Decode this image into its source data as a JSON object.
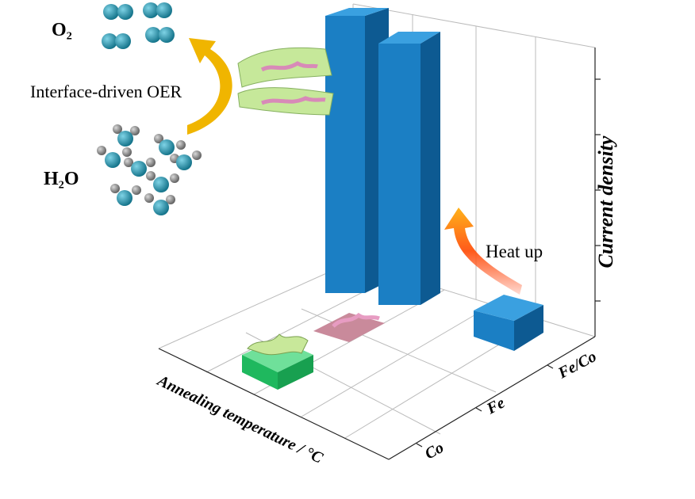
{
  "labels": {
    "o2": "O₂",
    "oer": "Interface-driven OER",
    "h2o": "H₂O",
    "heat_up": "Heat up"
  },
  "axes": {
    "z_title": "Current density",
    "x_title": "Annealing temperature / °C",
    "y_categories": [
      "Co",
      "Fe",
      "Fe/Co"
    ]
  }
}
